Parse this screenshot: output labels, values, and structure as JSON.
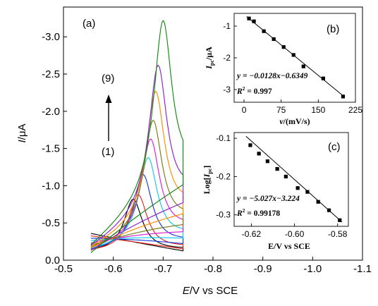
{
  "chart_data": {
    "type": "line",
    "panels": [
      {
        "id": "a",
        "type": "line",
        "panel_label": "(a)",
        "xlabel_var": "E",
        "xlabel_rest": "/V vs SCE",
        "ylabel_var": "I",
        "ylabel_rest": "/μA",
        "x_ticks": [
          "-0.5",
          "-0.6",
          "-0.7",
          "-0.8",
          "-0.9",
          "-1.0",
          "-1.1"
        ],
        "y_ticks": [
          "0.0",
          "-0.5",
          "-1.0",
          "-1.5",
          "-2.0",
          "-2.5",
          "-3.0"
        ],
        "xlim": [
          -0.5,
          -1.1
        ],
        "ylim": [
          0.0,
          -3.4
        ],
        "arrow_top_label": "(9)",
        "arrow_bottom_label": "(1)",
        "series": [
          {
            "color": "#000000",
            "peak_potential": -0.64,
            "peak_current": -0.82
          },
          {
            "color": "#e8271b",
            "peak_potential": -0.65,
            "peak_current": -0.88
          },
          {
            "color": "#1838d6",
            "peak_potential": -0.66,
            "peak_current": -1.15
          },
          {
            "color": "#14c8ef",
            "peak_potential": -0.67,
            "peak_current": -1.38
          },
          {
            "color": "#d81fd8",
            "peak_potential": -0.675,
            "peak_current": -1.63
          },
          {
            "color": "#7a7a14",
            "peak_potential": -0.68,
            "peak_current": -1.88
          },
          {
            "color": "#ff8c00",
            "peak_potential": -0.685,
            "peak_current": -2.27
          },
          {
            "color": "#8b21c7",
            "peak_potential": -0.69,
            "peak_current": -2.62
          },
          {
            "color": "#128a12",
            "peak_potential": -0.7,
            "peak_current": -3.22
          }
        ]
      },
      {
        "id": "b",
        "type": "scatter",
        "panel_label": "(b)",
        "xlabel_var": "v",
        "xlabel_rest": "/(mV/s)",
        "ylabel_var": "I",
        "ylabel_sub": "pc",
        "ylabel_rest": "/μA",
        "x_ticks": [
          "0",
          "75",
          "150",
          "225"
        ],
        "y_ticks": [
          "-1",
          "-2",
          "-3"
        ],
        "xlim": [
          -20,
          225
        ],
        "ylim": [
          -3.4,
          -0.6
        ],
        "equation": "y = −0.0128x−0.6349",
        "r2_label": "R",
        "r2_value": " = 0.997",
        "fit": {
          "slope": -0.0128,
          "intercept": -0.6349,
          "x_range": [
            5,
            200
          ]
        },
        "points": [
          {
            "x": 10,
            "y": -0.76
          },
          {
            "x": 20,
            "y": -0.85
          },
          {
            "x": 40,
            "y": -1.16
          },
          {
            "x": 60,
            "y": -1.41
          },
          {
            "x": 80,
            "y": -1.66
          },
          {
            "x": 100,
            "y": -1.91
          },
          {
            "x": 120,
            "y": -2.27
          },
          {
            "x": 160,
            "y": -2.65
          },
          {
            "x": 200,
            "y": -3.22
          }
        ]
      },
      {
        "id": "c",
        "type": "scatter",
        "panel_label": "(c)",
        "xlabel": "E/V vs SCE",
        "ylabel_prefix": "Log[",
        "ylabel_var": "I",
        "ylabel_sub": "pc",
        "ylabel_suffix": "]",
        "x_ticks": [
          "-0.62",
          "-0.60",
          "-0.58"
        ],
        "y_ticks": [
          "-0.1",
          "-0.2",
          "-0.3"
        ],
        "xlim": [
          -0.628,
          -0.575
        ],
        "ylim": [
          -0.33,
          -0.085
        ],
        "equation": "y = −5.027x−3.224",
        "r2_label": "R",
        "r2_value": " = 0.99178",
        "fit": {
          "slope": -5.027,
          "intercept": -3.224,
          "x_range": [
            -0.6225,
            -0.578
          ]
        },
        "points": [
          {
            "x": -0.6205,
            "y": -0.118
          },
          {
            "x": -0.6165,
            "y": -0.14
          },
          {
            "x": -0.6125,
            "y": -0.16
          },
          {
            "x": -0.608,
            "y": -0.18
          },
          {
            "x": -0.604,
            "y": -0.2
          },
          {
            "x": -0.5985,
            "y": -0.23
          },
          {
            "x": -0.594,
            "y": -0.24
          },
          {
            "x": -0.589,
            "y": -0.266
          },
          {
            "x": -0.584,
            "y": -0.288
          },
          {
            "x": -0.579,
            "y": -0.314
          }
        ]
      }
    ]
  }
}
